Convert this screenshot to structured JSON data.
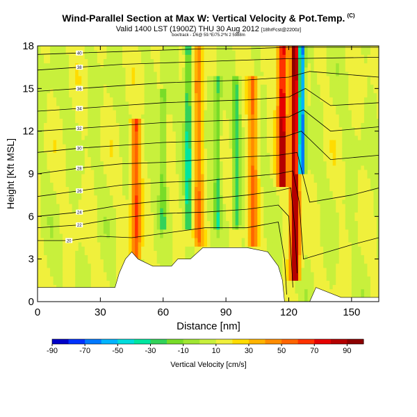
{
  "chart_data": {
    "type": "heatmap",
    "title": "Wind-Parallel Section at Max W: Vertical Velocity & Pot.Temp.",
    "title_tag": "(C)",
    "subtitle": "Valid 1400 LST (1900Z) THU 30 Aug 2012",
    "subtitle_tag": "[18hrFcst@2200z]",
    "subtitle2": "box/track - 1/6@ 59.*E/75.2*N 2 5988m",
    "xlabel": "Distance [nm]",
    "ylabel": "Height [Kft MSL]",
    "xlim": [
      0,
      163
    ],
    "ylim": [
      0,
      18
    ],
    "xticks": [
      0,
      30,
      60,
      90,
      120,
      150
    ],
    "yticks": [
      0,
      3,
      6,
      9,
      12,
      15,
      18
    ],
    "colorbar": {
      "label": "Vertical Velocity [cm/s]",
      "min": -90,
      "max": 100,
      "ticks": [
        -90,
        -70,
        -50,
        -30,
        -10,
        10,
        30,
        50,
        70,
        90
      ],
      "colors": [
        "#0000c8",
        "#0032ff",
        "#0078ff",
        "#00b4ff",
        "#00dcdc",
        "#00e6a0",
        "#32d25a",
        "#78dc28",
        "#a0e632",
        "#c8f03c",
        "#f0f03c",
        "#ffdc00",
        "#ffb400",
        "#ff8c00",
        "#ff6400",
        "#ff3200",
        "#e60000",
        "#b40000",
        "#8c0000"
      ]
    },
    "terrain": [
      [
        0,
        1
      ],
      [
        30,
        1
      ],
      [
        37,
        1
      ],
      [
        39,
        2
      ],
      [
        42,
        3
      ],
      [
        45,
        3.5
      ],
      [
        48,
        3
      ],
      [
        55,
        2.5
      ],
      [
        64,
        2.5
      ],
      [
        67,
        3
      ],
      [
        73,
        3
      ],
      [
        79,
        3.8
      ],
      [
        90,
        3.8
      ],
      [
        100,
        3.8
      ],
      [
        110,
        3.5
      ],
      [
        115,
        2.5
      ],
      [
        117,
        1.5
      ],
      [
        118,
        0
      ],
      [
        130,
        0
      ],
      [
        133,
        1
      ],
      [
        145,
        0.3
      ],
      [
        163,
        0.3
      ]
    ],
    "updrafts": [
      {
        "x": 47,
        "w": 50,
        "from": 3,
        "to": 13
      },
      {
        "x": 77,
        "w": 35,
        "from": 4,
        "to": 18
      },
      {
        "x": 103,
        "w": 40,
        "from": 4,
        "to": 16
      },
      {
        "x": 123,
        "w": 85,
        "from": 1.5,
        "to": 18
      },
      {
        "x": 117,
        "w": 75,
        "from": 8,
        "to": 18
      }
    ],
    "downdrafts": [
      {
        "x": 126,
        "w": -88,
        "from": 9,
        "to": 18
      },
      {
        "x": 72,
        "w": -35,
        "from": 5,
        "to": 18
      },
      {
        "x": 95,
        "w": -20,
        "from": 5,
        "to": 16
      },
      {
        "x": 86,
        "w": -20,
        "from": 5,
        "to": 16
      },
      {
        "x": 60,
        "w": -15,
        "from": 5,
        "to": 15
      }
    ],
    "contours": [
      {
        "label": "20",
        "pts": [
          [
            0,
            4.3
          ],
          [
            15,
            4.3
          ],
          [
            30,
            4.6
          ],
          [
            45,
            4.5
          ],
          [
            60,
            4.8
          ],
          [
            80,
            5.2
          ],
          [
            100,
            5.2
          ],
          [
            115,
            5.6
          ],
          [
            118,
            3
          ],
          [
            119,
            0.5
          ]
        ]
      },
      {
        "label": "22",
        "pts": [
          [
            0,
            5.2
          ],
          [
            20,
            5.4
          ],
          [
            40,
            5.9
          ],
          [
            60,
            6.2
          ],
          [
            80,
            6.3
          ],
          [
            100,
            6.5
          ],
          [
            115,
            6.8
          ],
          [
            120,
            6
          ],
          [
            121,
            3.5
          ],
          [
            122,
            1
          ]
        ]
      },
      {
        "label": "24",
        "pts": [
          [
            0,
            6
          ],
          [
            20,
            6.3
          ],
          [
            40,
            6.8
          ],
          [
            60,
            7.1
          ],
          [
            80,
            7.2
          ],
          [
            100,
            7.5
          ],
          [
            115,
            7.8
          ],
          [
            121,
            8
          ],
          [
            123,
            5
          ],
          [
            124,
            2
          ]
        ]
      },
      {
        "label": "26",
        "pts": [
          [
            0,
            7.4
          ],
          [
            20,
            7.8
          ],
          [
            40,
            8.2
          ],
          [
            60,
            8.4
          ],
          [
            80,
            8.5
          ],
          [
            100,
            8.8
          ],
          [
            115,
            9
          ],
          [
            122,
            9.2
          ],
          [
            125,
            7
          ],
          [
            127,
            3
          ],
          [
            150,
            4
          ],
          [
            163,
            4.5
          ]
        ]
      },
      {
        "label": "28",
        "pts": [
          [
            0,
            9
          ],
          [
            20,
            9.4
          ],
          [
            40,
            9.7
          ],
          [
            60,
            9.8
          ],
          [
            80,
            10
          ],
          [
            100,
            10.2
          ],
          [
            115,
            10.3
          ],
          [
            124,
            10.5
          ],
          [
            130,
            7
          ],
          [
            150,
            7.5
          ],
          [
            163,
            8
          ]
        ]
      },
      {
        "label": "30",
        "pts": [
          [
            0,
            10.5
          ],
          [
            20,
            10.8
          ],
          [
            40,
            11
          ],
          [
            60,
            11.2
          ],
          [
            80,
            11.3
          ],
          [
            100,
            11.5
          ],
          [
            118,
            11.6
          ],
          [
            126,
            12
          ],
          [
            140,
            10
          ],
          [
            163,
            10.3
          ]
        ]
      },
      {
        "label": "32",
        "pts": [
          [
            0,
            12
          ],
          [
            20,
            12.2
          ],
          [
            40,
            12.4
          ],
          [
            60,
            12.6
          ],
          [
            80,
            12.7
          ],
          [
            100,
            12.8
          ],
          [
            120,
            13
          ],
          [
            127,
            13.5
          ],
          [
            140,
            12
          ],
          [
            163,
            12.3
          ]
        ]
      },
      {
        "label": "34",
        "pts": [
          [
            0,
            13.4
          ],
          [
            20,
            13.6
          ],
          [
            40,
            13.8
          ],
          [
            60,
            14
          ],
          [
            80,
            14.1
          ],
          [
            100,
            14.2
          ],
          [
            120,
            14.4
          ],
          [
            128,
            15
          ],
          [
            140,
            13.8
          ],
          [
            163,
            14
          ]
        ]
      },
      {
        "label": "36",
        "pts": [
          [
            0,
            14.8
          ],
          [
            20,
            15
          ],
          [
            40,
            15.2
          ],
          [
            60,
            15.4
          ],
          [
            80,
            15.5
          ],
          [
            100,
            15.6
          ],
          [
            120,
            15.8
          ],
          [
            130,
            16.2
          ],
          [
            163,
            15.8
          ]
        ]
      },
      {
        "label": "38",
        "pts": [
          [
            0,
            16.3
          ],
          [
            20,
            16.5
          ],
          [
            40,
            16.7
          ],
          [
            60,
            16.8
          ],
          [
            80,
            16.9
          ],
          [
            100,
            17
          ],
          [
            120,
            17.1
          ],
          [
            163,
            17.2
          ]
        ]
      },
      {
        "label": "40",
        "pts": [
          [
            0,
            17.4
          ],
          [
            20,
            17.5
          ],
          [
            40,
            17.6
          ],
          [
            60,
            17.7
          ],
          [
            80,
            17.8
          ],
          [
            100,
            17.8
          ],
          [
            120,
            17.9
          ],
          [
            163,
            17.9
          ]
        ]
      }
    ]
  }
}
